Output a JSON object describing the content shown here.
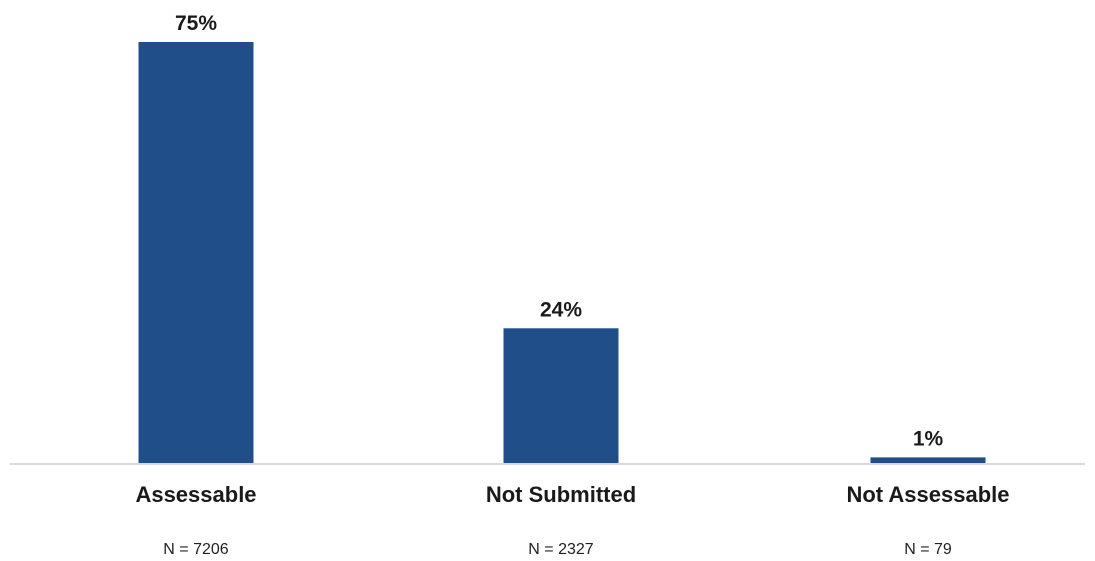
{
  "chart_data": {
    "type": "bar",
    "categories": [
      "Assessable",
      "Not Submitted",
      "Not Assessable"
    ],
    "values": [
      75,
      24,
      1
    ],
    "value_labels": [
      "75%",
      "24%",
      "1%"
    ],
    "counts": [
      "N = 7206",
      "N = 2327",
      "N = 79"
    ],
    "unit": "%",
    "ylim": [
      0,
      75
    ],
    "grid": false,
    "legend": "none",
    "colors": {
      "bar": "#1f4e89",
      "baseline": "#d9d9d9"
    }
  }
}
